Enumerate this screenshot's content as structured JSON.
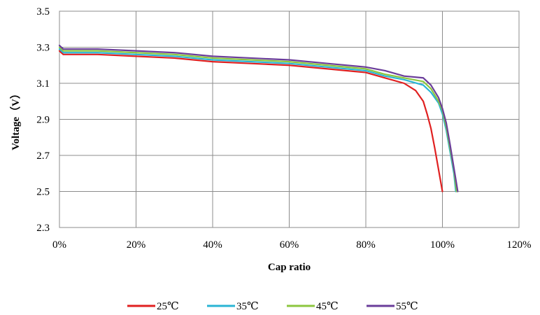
{
  "chart_data": {
    "type": "line",
    "title": "",
    "xlabel": "Cap ratio",
    "ylabel": "Voltage（V）",
    "xlim": [
      0,
      1.2
    ],
    "ylim": [
      2.3,
      3.5
    ],
    "x_ticks": [
      0,
      0.2,
      0.4,
      0.6,
      0.8,
      1.0,
      1.2
    ],
    "x_tick_labels": [
      "0%",
      "20%",
      "40%",
      "60%",
      "80%",
      "100%",
      "120%"
    ],
    "y_ticks": [
      2.3,
      2.5,
      2.7,
      2.9,
      3.1,
      3.3,
      3.5
    ],
    "y_tick_labels": [
      "2.3",
      "2.5",
      "2.7",
      "2.9",
      "3.1",
      "3.3",
      "3.5"
    ],
    "grid": true,
    "legend_position": "bottom",
    "series": [
      {
        "name": "25℃",
        "color": "#e02020",
        "x": [
          0,
          0.01,
          0.1,
          0.2,
          0.3,
          0.4,
          0.5,
          0.6,
          0.7,
          0.8,
          0.85,
          0.9,
          0.93,
          0.95,
          0.96,
          0.97,
          0.98,
          0.99,
          1.0
        ],
        "y": [
          3.28,
          3.26,
          3.26,
          3.25,
          3.24,
          3.22,
          3.21,
          3.2,
          3.18,
          3.16,
          3.13,
          3.1,
          3.06,
          3.0,
          2.93,
          2.85,
          2.74,
          2.62,
          2.5
        ]
      },
      {
        "name": "35℃",
        "color": "#2ab4d4",
        "x": [
          0,
          0.01,
          0.1,
          0.2,
          0.3,
          0.4,
          0.5,
          0.6,
          0.7,
          0.8,
          0.85,
          0.9,
          0.95,
          0.97,
          0.99,
          1.0,
          1.01,
          1.02,
          1.03,
          1.035
        ],
        "y": [
          3.29,
          3.27,
          3.27,
          3.26,
          3.25,
          3.23,
          3.22,
          3.21,
          3.19,
          3.17,
          3.14,
          3.12,
          3.09,
          3.05,
          2.99,
          2.93,
          2.84,
          2.72,
          2.6,
          2.5
        ]
      },
      {
        "name": "45℃",
        "color": "#8cc63f",
        "x": [
          0,
          0.01,
          0.1,
          0.2,
          0.3,
          0.4,
          0.5,
          0.6,
          0.7,
          0.8,
          0.85,
          0.9,
          0.95,
          0.97,
          0.99,
          1.0,
          1.01,
          1.02,
          1.03,
          1.037
        ],
        "y": [
          3.3,
          3.28,
          3.28,
          3.27,
          3.26,
          3.24,
          3.23,
          3.22,
          3.2,
          3.18,
          3.15,
          3.13,
          3.11,
          3.07,
          3.0,
          2.95,
          2.86,
          2.74,
          2.62,
          2.5
        ]
      },
      {
        "name": "55℃",
        "color": "#6a3d9a",
        "x": [
          0,
          0.01,
          0.1,
          0.2,
          0.3,
          0.4,
          0.5,
          0.6,
          0.7,
          0.8,
          0.85,
          0.9,
          0.95,
          0.97,
          0.99,
          1.0,
          1.01,
          1.02,
          1.03,
          1.04
        ],
        "y": [
          3.31,
          3.29,
          3.29,
          3.28,
          3.27,
          3.25,
          3.24,
          3.23,
          3.21,
          3.19,
          3.17,
          3.14,
          3.13,
          3.09,
          3.02,
          2.96,
          2.88,
          2.76,
          2.63,
          2.5
        ]
      }
    ]
  }
}
